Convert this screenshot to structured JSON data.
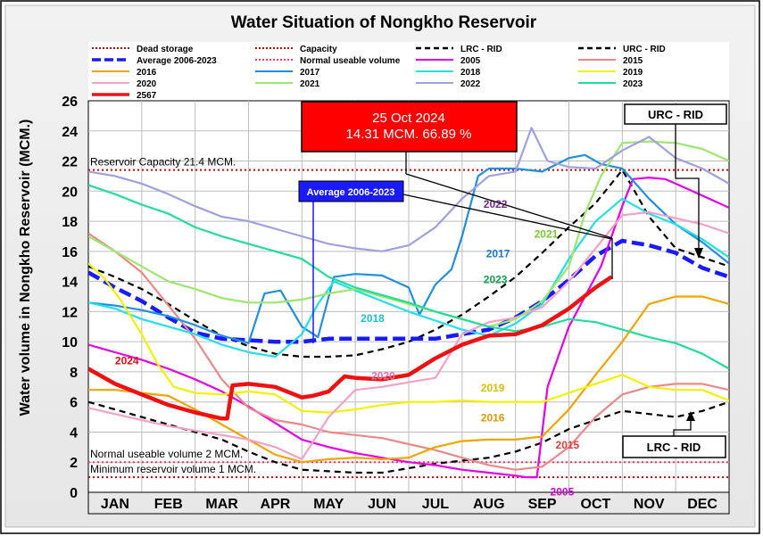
{
  "chart_data": {
    "type": "line",
    "title": "Water Situation of Nongkho Reservoir",
    "ylabel": "Water volume in Nongkho Reservoir (MCM.)",
    "xlabel": "",
    "categories": [
      "JAN",
      "FEB",
      "MAR",
      "APR",
      "MAY",
      "JUN",
      "JUL",
      "AUG",
      "SEP",
      "OCT",
      "NOV",
      "DEC"
    ],
    "ylim": [
      0,
      26
    ],
    "yticks": [
      0,
      2,
      4,
      6,
      8,
      10,
      12,
      14,
      16,
      18,
      20,
      22,
      24,
      26
    ],
    "grid": true,
    "legend_position": "top",
    "reference_lines": [
      {
        "name": "Dead storage",
        "value": 1,
        "color": "#cc0000"
      },
      {
        "name": "Capacity",
        "value": 21.4,
        "color": "#cc0000"
      },
      {
        "name": "Normal useable volume",
        "value": 2,
        "color": "#ff3366"
      }
    ],
    "reference_labels": [
      {
        "text": "Reservoir Capacity 21.4 MCM.",
        "value": 21.4
      },
      {
        "text": "Normal useable volume 2 MCM.",
        "value": 2
      },
      {
        "text": "Minimum reservoir volume 1 MCM.",
        "value": 1
      }
    ],
    "legend": [
      {
        "name": "Dead storage",
        "color": "#cc0000",
        "style": "dotted"
      },
      {
        "name": "Capacity",
        "color": "#cc0000",
        "style": "dotted"
      },
      {
        "name": "LRC - RID",
        "color": "#000000",
        "style": "dashed"
      },
      {
        "name": "URC - RID",
        "color": "#000000",
        "style": "dashed"
      },
      {
        "name": "Average 2006-2023",
        "color": "#1a1aff",
        "style": "longdash"
      },
      {
        "name": "Normal useable volume",
        "color": "#ff3366",
        "style": "dotted"
      },
      {
        "name": "2005",
        "color": "#e600e6",
        "style": "solid"
      },
      {
        "name": "2015",
        "color": "#ee8888",
        "style": "solid"
      },
      {
        "name": "2016",
        "color": "#f0a500",
        "style": "solid"
      },
      {
        "name": "2017",
        "color": "#1e90e0",
        "style": "solid"
      },
      {
        "name": "2018",
        "color": "#22e0e8",
        "style": "solid"
      },
      {
        "name": "2019",
        "color": "#f2f200",
        "style": "solid"
      },
      {
        "name": "2020",
        "color": "#f5a0c8",
        "style": "solid"
      },
      {
        "name": "2021",
        "color": "#9be86a",
        "style": "solid"
      },
      {
        "name": "2022",
        "color": "#a0a0e0",
        "style": "solid"
      },
      {
        "name": "2023",
        "color": "#22dd99",
        "style": "solid"
      },
      {
        "name": "2567",
        "color": "#ee1111",
        "style": "solid"
      }
    ],
    "series": [
      {
        "name": "LRC - RID",
        "color": "#000000",
        "width": 2.2,
        "dash": "7 5",
        "x": [
          0,
          0.5,
          1,
          1.5,
          2,
          2.5,
          3,
          3.5,
          4,
          4.5,
          5,
          5.5,
          6,
          6.5,
          7,
          7.5,
          8,
          8.5,
          9,
          9.5,
          10,
          10.5,
          11,
          11.5,
          12
        ],
        "y": [
          6,
          5.5,
          5,
          4.5,
          4,
          3.5,
          2.7,
          2,
          1.5,
          1.4,
          1.3,
          1.3,
          1.6,
          1.9,
          2.1,
          2.3,
          2.7,
          3.3,
          4.2,
          4.8,
          5.4,
          5.2,
          5,
          5.4,
          6
        ]
      },
      {
        "name": "URC - RID",
        "color": "#000000",
        "width": 2.2,
        "dash": "7 5",
        "x": [
          0,
          0.5,
          1,
          1.5,
          2,
          2.5,
          3,
          3.5,
          4,
          4.5,
          5,
          5.5,
          6,
          6.5,
          7,
          7.5,
          8,
          8.5,
          9,
          9.5,
          10,
          10.2,
          10.5,
          11,
          11.5,
          12
        ],
        "y": [
          15,
          14.3,
          13.5,
          12.5,
          11.4,
          10.4,
          9.7,
          9.2,
          9,
          9,
          9.1,
          9.5,
          10,
          10.8,
          11.8,
          13,
          14.3,
          15.9,
          17.6,
          19.2,
          21.4,
          20.2,
          18.3,
          16.2,
          15.6,
          15
        ]
      },
      {
        "name": "Average 2006-2023",
        "color": "#1a1aff",
        "width": 4.5,
        "dash": "14 6",
        "x": [
          0,
          0.5,
          1,
          1.5,
          2,
          2.5,
          3,
          3.5,
          4,
          4.5,
          5,
          5.5,
          6,
          6.5,
          7,
          7.5,
          8,
          8.5,
          9,
          9.5,
          10,
          10.5,
          11,
          11.5,
          12
        ],
        "y": [
          14.6,
          13.6,
          12.7,
          11.6,
          10.6,
          10.2,
          10.1,
          10,
          10,
          10.2,
          10.2,
          10.2,
          10.2,
          10.2,
          10.5,
          10.8,
          11.6,
          12.7,
          14.1,
          15.7,
          16.7,
          16.4,
          15.9,
          14.9,
          14.3
        ]
      },
      {
        "name": "2005",
        "color": "#e600e6",
        "width": 2.2,
        "x": [
          0,
          0.5,
          1,
          1.5,
          2,
          2.5,
          3,
          3.5,
          4,
          4.5,
          5,
          5.5,
          6,
          6.5,
          7,
          7.5,
          8,
          8.2,
          8.4,
          8.6,
          8.8,
          9,
          9.3,
          9.6,
          10,
          10.2,
          10.5,
          10.8,
          11,
          11.5,
          12
        ],
        "y": [
          9.8,
          9.3,
          8.8,
          8.2,
          7.5,
          6.7,
          5.7,
          4.6,
          3.5,
          3,
          2.6,
          2.3,
          2,
          1.8,
          1.5,
          1.3,
          1.1,
          1,
          1,
          7,
          9,
          11,
          13,
          15,
          19,
          20.8,
          20.9,
          20.8,
          20.5,
          19.7,
          18.9
        ]
      },
      {
        "name": "2015",
        "color": "#ee8888",
        "width": 2.2,
        "x": [
          0,
          0.5,
          1,
          1.5,
          2,
          2.5,
          3,
          3.5,
          4,
          4.5,
          5,
          5.5,
          6,
          6.5,
          7,
          7.5,
          8,
          8.5,
          9,
          9.5,
          10,
          10.5,
          11,
          11.5,
          12
        ],
        "y": [
          17.2,
          16,
          14.6,
          12.4,
          10.2,
          7.5,
          5.6,
          4.8,
          4.5,
          4,
          3.8,
          3.6,
          3.2,
          2.8,
          2.3,
          1.8,
          1.5,
          1.7,
          3,
          5,
          6.5,
          7,
          7.2,
          7.2,
          6.8
        ]
      },
      {
        "name": "2016",
        "color": "#f0a500",
        "width": 2.2,
        "x": [
          0,
          0.5,
          1,
          1.5,
          2,
          2.5,
          3,
          3.5,
          4,
          4.5,
          5,
          5.5,
          6,
          6.5,
          7,
          7.5,
          8,
          8.5,
          9,
          9.5,
          10,
          10.5,
          11,
          11.5,
          12
        ],
        "y": [
          6.8,
          6.8,
          6.6,
          6.4,
          5.5,
          4.5,
          3.5,
          2.5,
          2,
          2.2,
          2.3,
          2.2,
          2.3,
          3,
          3.4,
          3.5,
          3.5,
          3.7,
          5.5,
          7.8,
          10,
          12.5,
          13,
          13,
          12.5
        ]
      },
      {
        "name": "2017",
        "color": "#1e90e0",
        "width": 2.2,
        "x": [
          0,
          0.5,
          1,
          1.5,
          2,
          2.5,
          3,
          3.3,
          3.6,
          4,
          4.3,
          4.6,
          5,
          5.5,
          6,
          6.2,
          6.5,
          6.8,
          7,
          7.3,
          7.5,
          8,
          8.5,
          9,
          9.3,
          9.6,
          10,
          10.5,
          11,
          11.5,
          12
        ],
        "y": [
          12.6,
          12.4,
          12.1,
          11.7,
          11.1,
          10.4,
          9.9,
          13.2,
          13.4,
          11,
          10.3,
          14.3,
          14.5,
          14.4,
          13.6,
          11.8,
          13.8,
          14.8,
          17,
          21,
          21.5,
          21.5,
          21.3,
          22.2,
          22.4,
          21.8,
          21.5,
          19.5,
          17.8,
          16.6,
          15.2
        ]
      },
      {
        "name": "2018",
        "color": "#22e0e8",
        "width": 2.2,
        "x": [
          0,
          0.5,
          1,
          1.5,
          2,
          2.5,
          3,
          3.5,
          4,
          4.3,
          4.6,
          5,
          5.5,
          6,
          6.5,
          7,
          7.5,
          8,
          8.5,
          9,
          9.5,
          10,
          10.5,
          11,
          11.5,
          12
        ],
        "y": [
          12.6,
          12.2,
          11.5,
          11,
          10.5,
          9.8,
          9.3,
          9,
          10.5,
          12.5,
          14,
          13.4,
          12.7,
          12,
          11.4,
          10.8,
          10.4,
          11.2,
          12.5,
          15.5,
          18,
          19.5,
          18.5,
          17.8,
          16.8,
          15.6
        ]
      },
      {
        "name": "2019",
        "color": "#f2f200",
        "width": 2.2,
        "x": [
          0,
          0.3,
          0.6,
          1,
          1.3,
          1.6,
          2,
          2.5,
          3,
          3.5,
          4,
          4.5,
          5,
          5.5,
          6,
          6.5,
          7,
          7.5,
          8,
          8.5,
          9,
          9.5,
          10,
          10.5,
          11,
          11.5,
          12
        ],
        "y": [
          15.2,
          14.2,
          12.8,
          10.5,
          8.5,
          7,
          6.6,
          6.5,
          6.7,
          6.5,
          5.4,
          5.3,
          5.5,
          5.8,
          6,
          6,
          6.1,
          6,
          6,
          6,
          6.6,
          7.2,
          7.8,
          7,
          6.8,
          6.8,
          6.1
        ]
      },
      {
        "name": "2020",
        "color": "#f5a0c8",
        "width": 2.2,
        "x": [
          0,
          0.5,
          1,
          1.5,
          2,
          2.5,
          3,
          3.5,
          4,
          4.5,
          5,
          5.5,
          6,
          6.5,
          7,
          7.5,
          8,
          8.5,
          9,
          9.5,
          10,
          10.5,
          11,
          11.5,
          12
        ],
        "y": [
          5.6,
          5.2,
          4.8,
          4.4,
          4.1,
          3.8,
          3.5,
          3,
          2.2,
          5,
          6.8,
          7,
          7.3,
          7.6,
          10.5,
          11.3,
          11.6,
          12.3,
          14,
          16.2,
          18.4,
          18.6,
          18.2,
          17.8,
          17.2
        ]
      },
      {
        "name": "2021",
        "color": "#9be86a",
        "width": 2.2,
        "x": [
          0,
          0.5,
          1,
          1.5,
          2,
          2.5,
          3,
          3.5,
          4,
          4.5,
          5,
          5.5,
          6,
          6.5,
          7,
          7.5,
          8,
          8.5,
          9,
          9.3,
          9.6,
          10,
          10.5,
          11,
          11.5,
          12
        ],
        "y": [
          17,
          16,
          15,
          14,
          13.5,
          12.9,
          12.6,
          12.6,
          12.8,
          13.2,
          13.5,
          13,
          12.5,
          12,
          11.5,
          11,
          11.5,
          12.7,
          15,
          18.5,
          21,
          23.2,
          23.3,
          23.2,
          22.8,
          22
        ]
      },
      {
        "name": "2022",
        "color": "#a0a0e0",
        "width": 2.2,
        "x": [
          0,
          0.5,
          1,
          1.5,
          2,
          2.5,
          3,
          3.5,
          4,
          4.5,
          5,
          5.5,
          6,
          6.5,
          7,
          7.5,
          8,
          8.3,
          8.6,
          9,
          9.5,
          10,
          10.5,
          11,
          11.5,
          12
        ],
        "y": [
          21.3,
          21,
          20.5,
          19.8,
          19,
          18.3,
          18,
          17.5,
          17,
          16.5,
          16.2,
          16,
          16.4,
          17.6,
          19.5,
          21,
          21.3,
          24.2,
          22,
          21.6,
          21.5,
          22.7,
          23.6,
          22.2,
          21.5,
          20.5
        ]
      },
      {
        "name": "2023",
        "color": "#22dd99",
        "width": 2.2,
        "x": [
          0,
          0.5,
          1,
          1.5,
          2,
          2.5,
          3,
          3.5,
          4,
          4.5,
          5,
          5.5,
          6,
          6.5,
          7,
          7.5,
          8,
          8.5,
          9,
          9.5,
          10,
          10.5,
          11,
          11.5,
          12
        ],
        "y": [
          20.4,
          19.8,
          19.1,
          18.5,
          17.6,
          17,
          16.5,
          16,
          15.5,
          14.3,
          13.6,
          13.1,
          12.6,
          12,
          11.5,
          11,
          10.7,
          11,
          11.5,
          11.3,
          10.8,
          10.3,
          9.9,
          9.2,
          8.2
        ]
      },
      {
        "name": "2567",
        "color": "#ee1111",
        "width": 4.5,
        "x": [
          0,
          0.5,
          1,
          1.5,
          2,
          2.5,
          2.6,
          2.7,
          3,
          3.5,
          4,
          4.2,
          4.5,
          4.8,
          5,
          5.5,
          6,
          6.5,
          7,
          7.5,
          8,
          8.5,
          9,
          9.5,
          9.8
        ],
        "y": [
          8.2,
          7.2,
          6.5,
          5.8,
          5.3,
          4.9,
          4.9,
          7.1,
          7.2,
          7,
          6.3,
          6.4,
          6.7,
          7.7,
          7.6,
          7.5,
          7.8,
          8.9,
          9.8,
          10.4,
          10.5,
          11.1,
          12.2,
          13.6,
          14.31
        ]
      }
    ],
    "annotations": [
      {
        "text": "25 Oct 2024\n14.31 MCM. 66.89 %",
        "type": "callout"
      },
      {
        "text": "URC - RID",
        "type": "callout"
      },
      {
        "text": "LRC - RID",
        "type": "callout"
      },
      {
        "text": "Average 2006-2023",
        "type": "callout"
      }
    ],
    "series_labels": [
      {
        "text": "2024",
        "x": 0.5,
        "y": 8.5,
        "color": "#dd1111"
      },
      {
        "text": "2022",
        "x": 7.4,
        "y": 18.9,
        "color": "#7a2a9a"
      },
      {
        "text": "2021",
        "x": 8.35,
        "y": 16.9,
        "color": "#7ac830"
      },
      {
        "text": "2017",
        "x": 7.45,
        "y": 15.6,
        "color": "#1e78c8"
      },
      {
        "text": "2023",
        "x": 7.4,
        "y": 13.9,
        "color": "#13a04e"
      },
      {
        "text": "2018",
        "x": 5.1,
        "y": 11.3,
        "color": "#1fbfd2"
      },
      {
        "text": "2020",
        "x": 5.3,
        "y": 7.5,
        "color": "#e06fa8"
      },
      {
        "text": "2019",
        "x": 7.35,
        "y": 6.7,
        "color": "#dcbf00"
      },
      {
        "text": "2016",
        "x": 7.35,
        "y": 4.7,
        "color": "#e09a00"
      },
      {
        "text": "2015",
        "x": 8.75,
        "y": 2.9,
        "color": "#e23c3c"
      },
      {
        "text": "2005",
        "x": 8.65,
        "y": -0.2,
        "color": "#d200d2"
      }
    ]
  }
}
